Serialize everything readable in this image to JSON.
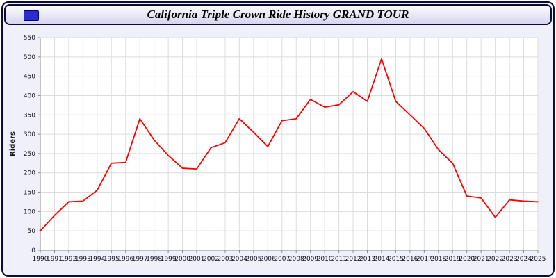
{
  "header": {
    "title": "California Triple Crown Ride History GRAND TOUR",
    "icon": "blue-window-icon"
  },
  "colors": {
    "line": "#ff0000",
    "plot_bg": "#ffffff",
    "page_bg": "#f0f0fa",
    "grid": "#dcdcdc",
    "axis": "#8a8a8a",
    "border": "#0c0c3a",
    "icon_blue": "#2b2bd0"
  },
  "chart_data": {
    "type": "line",
    "title": "California Triple Crown Ride History GRAND TOUR",
    "xlabel": "",
    "ylabel": "Riders",
    "ylim": [
      0,
      550
    ],
    "ytick_step": 50,
    "grid": true,
    "legend_position": "none",
    "x": [
      1990,
      1991,
      1992,
      1993,
      1994,
      1995,
      1996,
      1997,
      1998,
      1999,
      2000,
      2001,
      2002,
      2003,
      2004,
      2005,
      2006,
      2007,
      2008,
      2009,
      2010,
      2011,
      2012,
      2013,
      2014,
      2015,
      2016,
      2017,
      2018,
      2019,
      2020,
      2021,
      2022,
      2023,
      2024,
      2025
    ],
    "series": [
      {
        "name": "Riders",
        "color": "#ff0000",
        "values": [
          50,
          90,
          125,
          127,
          155,
          225,
          227,
          340,
          285,
          245,
          212,
          210,
          265,
          278,
          340,
          305,
          268,
          335,
          340,
          390,
          370,
          376,
          410,
          385,
          495,
          385,
          350,
          315,
          260,
          225,
          140,
          135,
          85,
          130,
          127,
          125
        ]
      }
    ]
  }
}
